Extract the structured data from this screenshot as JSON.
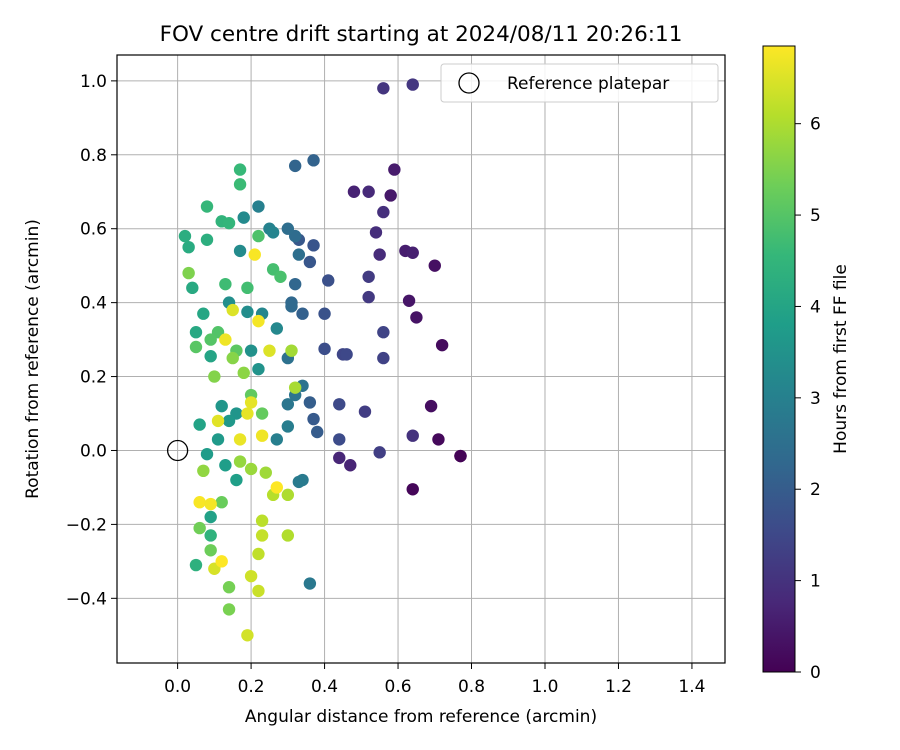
{
  "chart_data": {
    "type": "scatter",
    "title": "FOV centre drift starting at 2024/08/11 20:26:11",
    "xlabel": "Angular distance from reference (arcmin)",
    "ylabel": "Rotation from reference (arcmin)",
    "colorbar_label": "Hours from first FF file",
    "xlim": [
      -0.165,
      1.49
    ],
    "ylim": [
      -0.575,
      1.07
    ],
    "x_ticks": [
      "0.0",
      "0.2",
      "0.4",
      "0.6",
      "0.8",
      "1.0",
      "1.2",
      "1.4"
    ],
    "y_ticks": [
      "−0.4",
      "−0.2",
      "0.0",
      "0.2",
      "0.4",
      "0.6",
      "0.8",
      "1.0"
    ],
    "colorbar_ticks": [
      "0",
      "1",
      "2",
      "3",
      "4",
      "5",
      "6"
    ],
    "colorbar_range": [
      0,
      6.85
    ],
    "colormap": [
      "#440154",
      "#482878",
      "#3e4989",
      "#31688e",
      "#26828e",
      "#1f9e89",
      "#35b779",
      "#6ece58",
      "#b5de2b",
      "#fde725"
    ],
    "grid": true,
    "legend": {
      "location": "top-right",
      "entries": [
        "Reference platepar"
      ]
    },
    "reference_point": {
      "x": 0.0,
      "y": 0.0
    },
    "points": [
      [
        0.77,
        -0.015,
        0.0
      ],
      [
        0.77,
        -0.015,
        0.05
      ],
      [
        0.64,
        -0.105,
        0.1
      ],
      [
        0.71,
        0.03,
        0.15
      ],
      [
        0.72,
        0.285,
        0.2
      ],
      [
        0.69,
        0.12,
        0.25
      ],
      [
        0.7,
        0.5,
        0.3
      ],
      [
        0.65,
        0.36,
        0.35
      ],
      [
        0.63,
        0.405,
        0.4
      ],
      [
        0.58,
        0.69,
        0.45
      ],
      [
        0.59,
        0.76,
        0.5
      ],
      [
        0.62,
        0.54,
        0.55
      ],
      [
        0.64,
        0.535,
        0.6
      ],
      [
        0.48,
        0.7,
        0.65
      ],
      [
        0.47,
        -0.04,
        0.7
      ],
      [
        0.44,
        -0.02,
        0.75
      ],
      [
        0.52,
        0.7,
        0.8
      ],
      [
        0.55,
        0.53,
        0.85
      ],
      [
        0.54,
        0.59,
        0.9
      ],
      [
        0.56,
        0.645,
        0.95
      ],
      [
        0.64,
        0.04,
        1.0
      ],
      [
        0.56,
        0.98,
        1.05
      ],
      [
        0.64,
        0.99,
        1.1
      ],
      [
        0.52,
        0.415,
        1.15
      ],
      [
        0.52,
        0.47,
        1.2
      ],
      [
        0.51,
        0.105,
        1.25
      ],
      [
        0.55,
        -0.005,
        1.3
      ],
      [
        0.56,
        0.25,
        1.35
      ],
      [
        0.56,
        0.32,
        1.4
      ],
      [
        0.45,
        0.26,
        1.45
      ],
      [
        0.46,
        0.26,
        1.5
      ],
      [
        0.44,
        0.125,
        1.55
      ],
      [
        0.44,
        0.03,
        1.6
      ],
      [
        0.4,
        0.275,
        1.65
      ],
      [
        0.41,
        0.46,
        1.7
      ],
      [
        0.4,
        0.37,
        1.75
      ],
      [
        0.37,
        0.555,
        1.8
      ],
      [
        0.36,
        0.51,
        1.85
      ],
      [
        0.33,
        0.57,
        1.9
      ],
      [
        0.37,
        0.085,
        1.95
      ],
      [
        0.38,
        0.05,
        2.0
      ],
      [
        0.36,
        0.13,
        2.05
      ],
      [
        0.34,
        0.37,
        2.1
      ],
      [
        0.37,
        0.785,
        2.15
      ],
      [
        0.32,
        0.77,
        2.2
      ],
      [
        0.32,
        0.45,
        2.25
      ],
      [
        0.31,
        0.4,
        2.3
      ],
      [
        0.31,
        0.39,
        2.35
      ],
      [
        0.32,
        0.58,
        2.4
      ],
      [
        0.3,
        0.6,
        2.45
      ],
      [
        0.33,
        0.53,
        2.5
      ],
      [
        0.3,
        0.25,
        2.55
      ],
      [
        0.34,
        0.175,
        2.6
      ],
      [
        0.32,
        0.15,
        2.65
      ],
      [
        0.3,
        0.125,
        2.7
      ],
      [
        0.36,
        -0.36,
        2.75
      ],
      [
        0.34,
        -0.08,
        2.8
      ],
      [
        0.33,
        -0.085,
        2.85
      ],
      [
        0.3,
        0.065,
        2.9
      ],
      [
        0.27,
        0.03,
        2.95
      ],
      [
        0.22,
        0.66,
        3.0
      ],
      [
        0.25,
        0.6,
        3.05
      ],
      [
        0.26,
        0.59,
        3.1
      ],
      [
        0.23,
        0.37,
        3.15
      ],
      [
        0.27,
        0.33,
        3.2
      ],
      [
        0.18,
        0.63,
        3.25
      ],
      [
        0.17,
        0.54,
        3.3
      ],
      [
        0.19,
        0.375,
        3.35
      ],
      [
        0.14,
        0.4,
        3.4
      ],
      [
        0.2,
        0.27,
        3.45
      ],
      [
        0.22,
        0.22,
        3.5
      ],
      [
        0.16,
        0.1,
        3.55
      ],
      [
        0.12,
        0.12,
        3.6
      ],
      [
        0.14,
        0.08,
        3.65
      ],
      [
        0.11,
        0.03,
        3.7
      ],
      [
        0.08,
        -0.01,
        3.75
      ],
      [
        0.13,
        -0.04,
        3.8
      ],
      [
        0.16,
        -0.08,
        3.85
      ],
      [
        0.09,
        -0.18,
        3.9
      ],
      [
        0.06,
        0.07,
        3.95
      ],
      [
        0.09,
        0.255,
        4.0
      ],
      [
        0.07,
        0.37,
        4.05
      ],
      [
        0.05,
        0.32,
        4.1
      ],
      [
        0.04,
        0.44,
        4.15
      ],
      [
        0.03,
        0.55,
        4.2
      ],
      [
        0.02,
        0.58,
        4.25
      ],
      [
        0.08,
        0.57,
        4.3
      ],
      [
        0.05,
        -0.31,
        4.35
      ],
      [
        0.09,
        -0.23,
        4.4
      ],
      [
        0.12,
        0.62,
        4.45
      ],
      [
        0.14,
        0.615,
        4.5
      ],
      [
        0.08,
        0.66,
        4.55
      ],
      [
        0.17,
        0.76,
        4.6
      ],
      [
        0.17,
        0.72,
        4.65
      ],
      [
        0.13,
        0.45,
        4.7
      ],
      [
        0.19,
        0.44,
        4.75
      ],
      [
        0.26,
        0.49,
        4.8
      ],
      [
        0.28,
        0.47,
        4.85
      ],
      [
        0.22,
        0.58,
        4.9
      ],
      [
        0.11,
        0.32,
        4.95
      ],
      [
        0.09,
        0.3,
        5.0
      ],
      [
        0.05,
        0.28,
        5.05
      ],
      [
        0.16,
        0.27,
        5.1
      ],
      [
        0.2,
        0.15,
        5.15
      ],
      [
        0.23,
        0.1,
        5.2
      ],
      [
        0.12,
        -0.14,
        5.25
      ],
      [
        0.09,
        -0.27,
        5.3
      ],
      [
        0.06,
        -0.21,
        5.35
      ],
      [
        0.14,
        -0.37,
        5.4
      ],
      [
        0.14,
        -0.43,
        5.45
      ],
      [
        0.03,
        0.48,
        5.5
      ],
      [
        0.1,
        0.2,
        5.55
      ],
      [
        0.15,
        0.25,
        5.6
      ],
      [
        0.18,
        0.21,
        5.65
      ],
      [
        0.07,
        -0.055,
        5.7
      ],
      [
        0.17,
        -0.03,
        5.75
      ],
      [
        0.2,
        -0.05,
        5.8
      ],
      [
        0.24,
        -0.06,
        5.85
      ],
      [
        0.31,
        0.27,
        5.9
      ],
      [
        0.32,
        0.17,
        5.95
      ],
      [
        0.3,
        -0.12,
        6.0
      ],
      [
        0.3,
        -0.23,
        6.05
      ],
      [
        0.26,
        -0.12,
        6.1
      ],
      [
        0.23,
        -0.19,
        6.15
      ],
      [
        0.22,
        -0.28,
        6.2
      ],
      [
        0.23,
        -0.23,
        6.25
      ],
      [
        0.22,
        -0.38,
        6.3
      ],
      [
        0.2,
        -0.34,
        6.35
      ],
      [
        0.19,
        -0.5,
        6.4
      ],
      [
        0.1,
        -0.32,
        6.45
      ],
      [
        0.15,
        0.38,
        6.5
      ],
      [
        0.11,
        0.08,
        6.55
      ],
      [
        0.19,
        0.1,
        6.6
      ],
      [
        0.17,
        0.03,
        6.65
      ],
      [
        0.13,
        0.3,
        6.7
      ],
      [
        0.22,
        0.35,
        6.75
      ],
      [
        0.21,
        0.53,
        6.8
      ],
      [
        0.27,
        -0.1,
        6.85
      ],
      [
        0.12,
        -0.3,
        6.85
      ],
      [
        0.06,
        -0.14,
        6.8
      ],
      [
        0.09,
        -0.145,
        6.75
      ],
      [
        0.23,
        0.04,
        6.7
      ],
      [
        0.2,
        0.13,
        6.6
      ],
      [
        0.25,
        0.27,
        6.5
      ]
    ]
  }
}
